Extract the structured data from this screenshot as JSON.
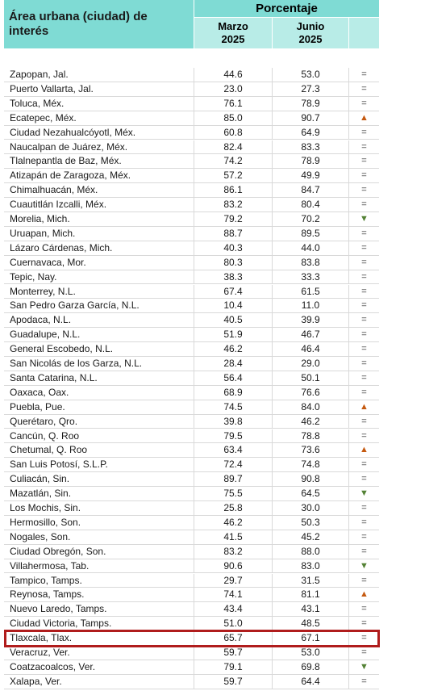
{
  "header": {
    "area": "Área urbana (ciudad) de interés",
    "group": "Porcentaje",
    "col1": "Marzo 2025",
    "col2": "Junio 2025"
  },
  "table": {
    "rows": [
      [
        "Zapopan, Jal.",
        "44.6",
        "53.0",
        "="
      ],
      [
        "Puerto Vallarta, Jal.",
        "23.0",
        "27.3",
        "="
      ],
      [
        "Toluca, Méx.",
        "76.1",
        "78.9",
        "="
      ],
      [
        "Ecatepec, Méx.",
        "85.0",
        "90.7",
        "▲"
      ],
      [
        "Ciudad Nezahualcóyotl, Méx.",
        "60.8",
        "64.9",
        "="
      ],
      [
        "Naucalpan de Juárez, Méx.",
        "82.4",
        "83.3",
        "="
      ],
      [
        "Tlalnepantla de Baz, Méx.",
        "74.2",
        "78.9",
        "="
      ],
      [
        "Atizapán de Zaragoza, Méx.",
        "57.2",
        "49.9",
        "="
      ],
      [
        "Chimalhuacán, Méx.",
        "86.1",
        "84.7",
        "="
      ],
      [
        "Cuautitlán Izcalli, Méx.",
        "83.2",
        "80.4",
        "="
      ],
      [
        "Morelia, Mich.",
        "79.2",
        "70.2",
        "▼"
      ],
      [
        "Uruapan, Mich.",
        "88.7",
        "89.5",
        "="
      ],
      [
        "Lázaro Cárdenas, Mich.",
        "40.3",
        "44.0",
        "="
      ],
      [
        "Cuernavaca, Mor.",
        "80.3",
        "83.8",
        "="
      ],
      [
        "Tepic, Nay.",
        "38.3",
        "33.3",
        "="
      ],
      [
        "Monterrey, N.L.",
        "67.4",
        "61.5",
        "="
      ],
      [
        "San Pedro Garza García, N.L.",
        "10.4",
        "11.0",
        "="
      ],
      [
        "Apodaca, N.L.",
        "40.5",
        "39.9",
        "="
      ],
      [
        "Guadalupe, N.L.",
        "51.9",
        "46.7",
        "="
      ],
      [
        "General Escobedo, N.L.",
        "46.2",
        "46.4",
        "="
      ],
      [
        "San Nicolás de los Garza, N.L.",
        "28.4",
        "29.0",
        "="
      ],
      [
        "Santa Catarina, N.L.",
        "56.4",
        "50.1",
        "="
      ],
      [
        "Oaxaca, Oax.",
        "68.9",
        "76.6",
        "="
      ],
      [
        "Puebla, Pue.",
        "74.5",
        "84.0",
        "▲"
      ],
      [
        "Querétaro, Qro.",
        "39.8",
        "46.2",
        "="
      ],
      [
        "Cancún, Q. Roo",
        "79.5",
        "78.8",
        "="
      ],
      [
        "Chetumal, Q. Roo",
        "63.4",
        "73.6",
        "▲"
      ],
      [
        "San Luis Potosí, S.L.P.",
        "72.4",
        "74.8",
        "="
      ],
      [
        "Culiacán, Sin.",
        "89.7",
        "90.8",
        "="
      ],
      [
        "Mazatlán, Sin.",
        "75.5",
        "64.5",
        "▼"
      ],
      [
        "Los Mochis, Sin.",
        "25.8",
        "30.0",
        "="
      ],
      [
        "Hermosillo, Son.",
        "46.2",
        "50.3",
        "="
      ],
      [
        "Nogales, Son.",
        "41.5",
        "45.2",
        "="
      ],
      [
        "Ciudad Obregón, Son.",
        "83.2",
        "88.0",
        "="
      ],
      [
        "Villahermosa, Tab.",
        "90.6",
        "83.0",
        "▼"
      ],
      [
        "Tampico, Tamps.",
        "29.7",
        "31.5",
        "="
      ],
      [
        "Reynosa, Tamps.",
        "74.1",
        "81.1",
        "▲"
      ],
      [
        "Nuevo Laredo, Tamps.",
        "43.4",
        "43.1",
        "="
      ],
      [
        "Ciudad Victoria, Tamps.",
        "51.0",
        "48.5",
        "="
      ],
      [
        "Tlaxcala, Tlax.",
        "65.7",
        "67.1",
        "="
      ],
      [
        "Veracruz, Ver.",
        "59.7",
        "53.0",
        "="
      ],
      [
        "Coatzacoalcos, Ver.",
        "79.1",
        "69.8",
        "▼"
      ],
      [
        "Xalapa, Ver.",
        "59.7",
        "64.4",
        "="
      ]
    ]
  },
  "highlight_row": 39
}
